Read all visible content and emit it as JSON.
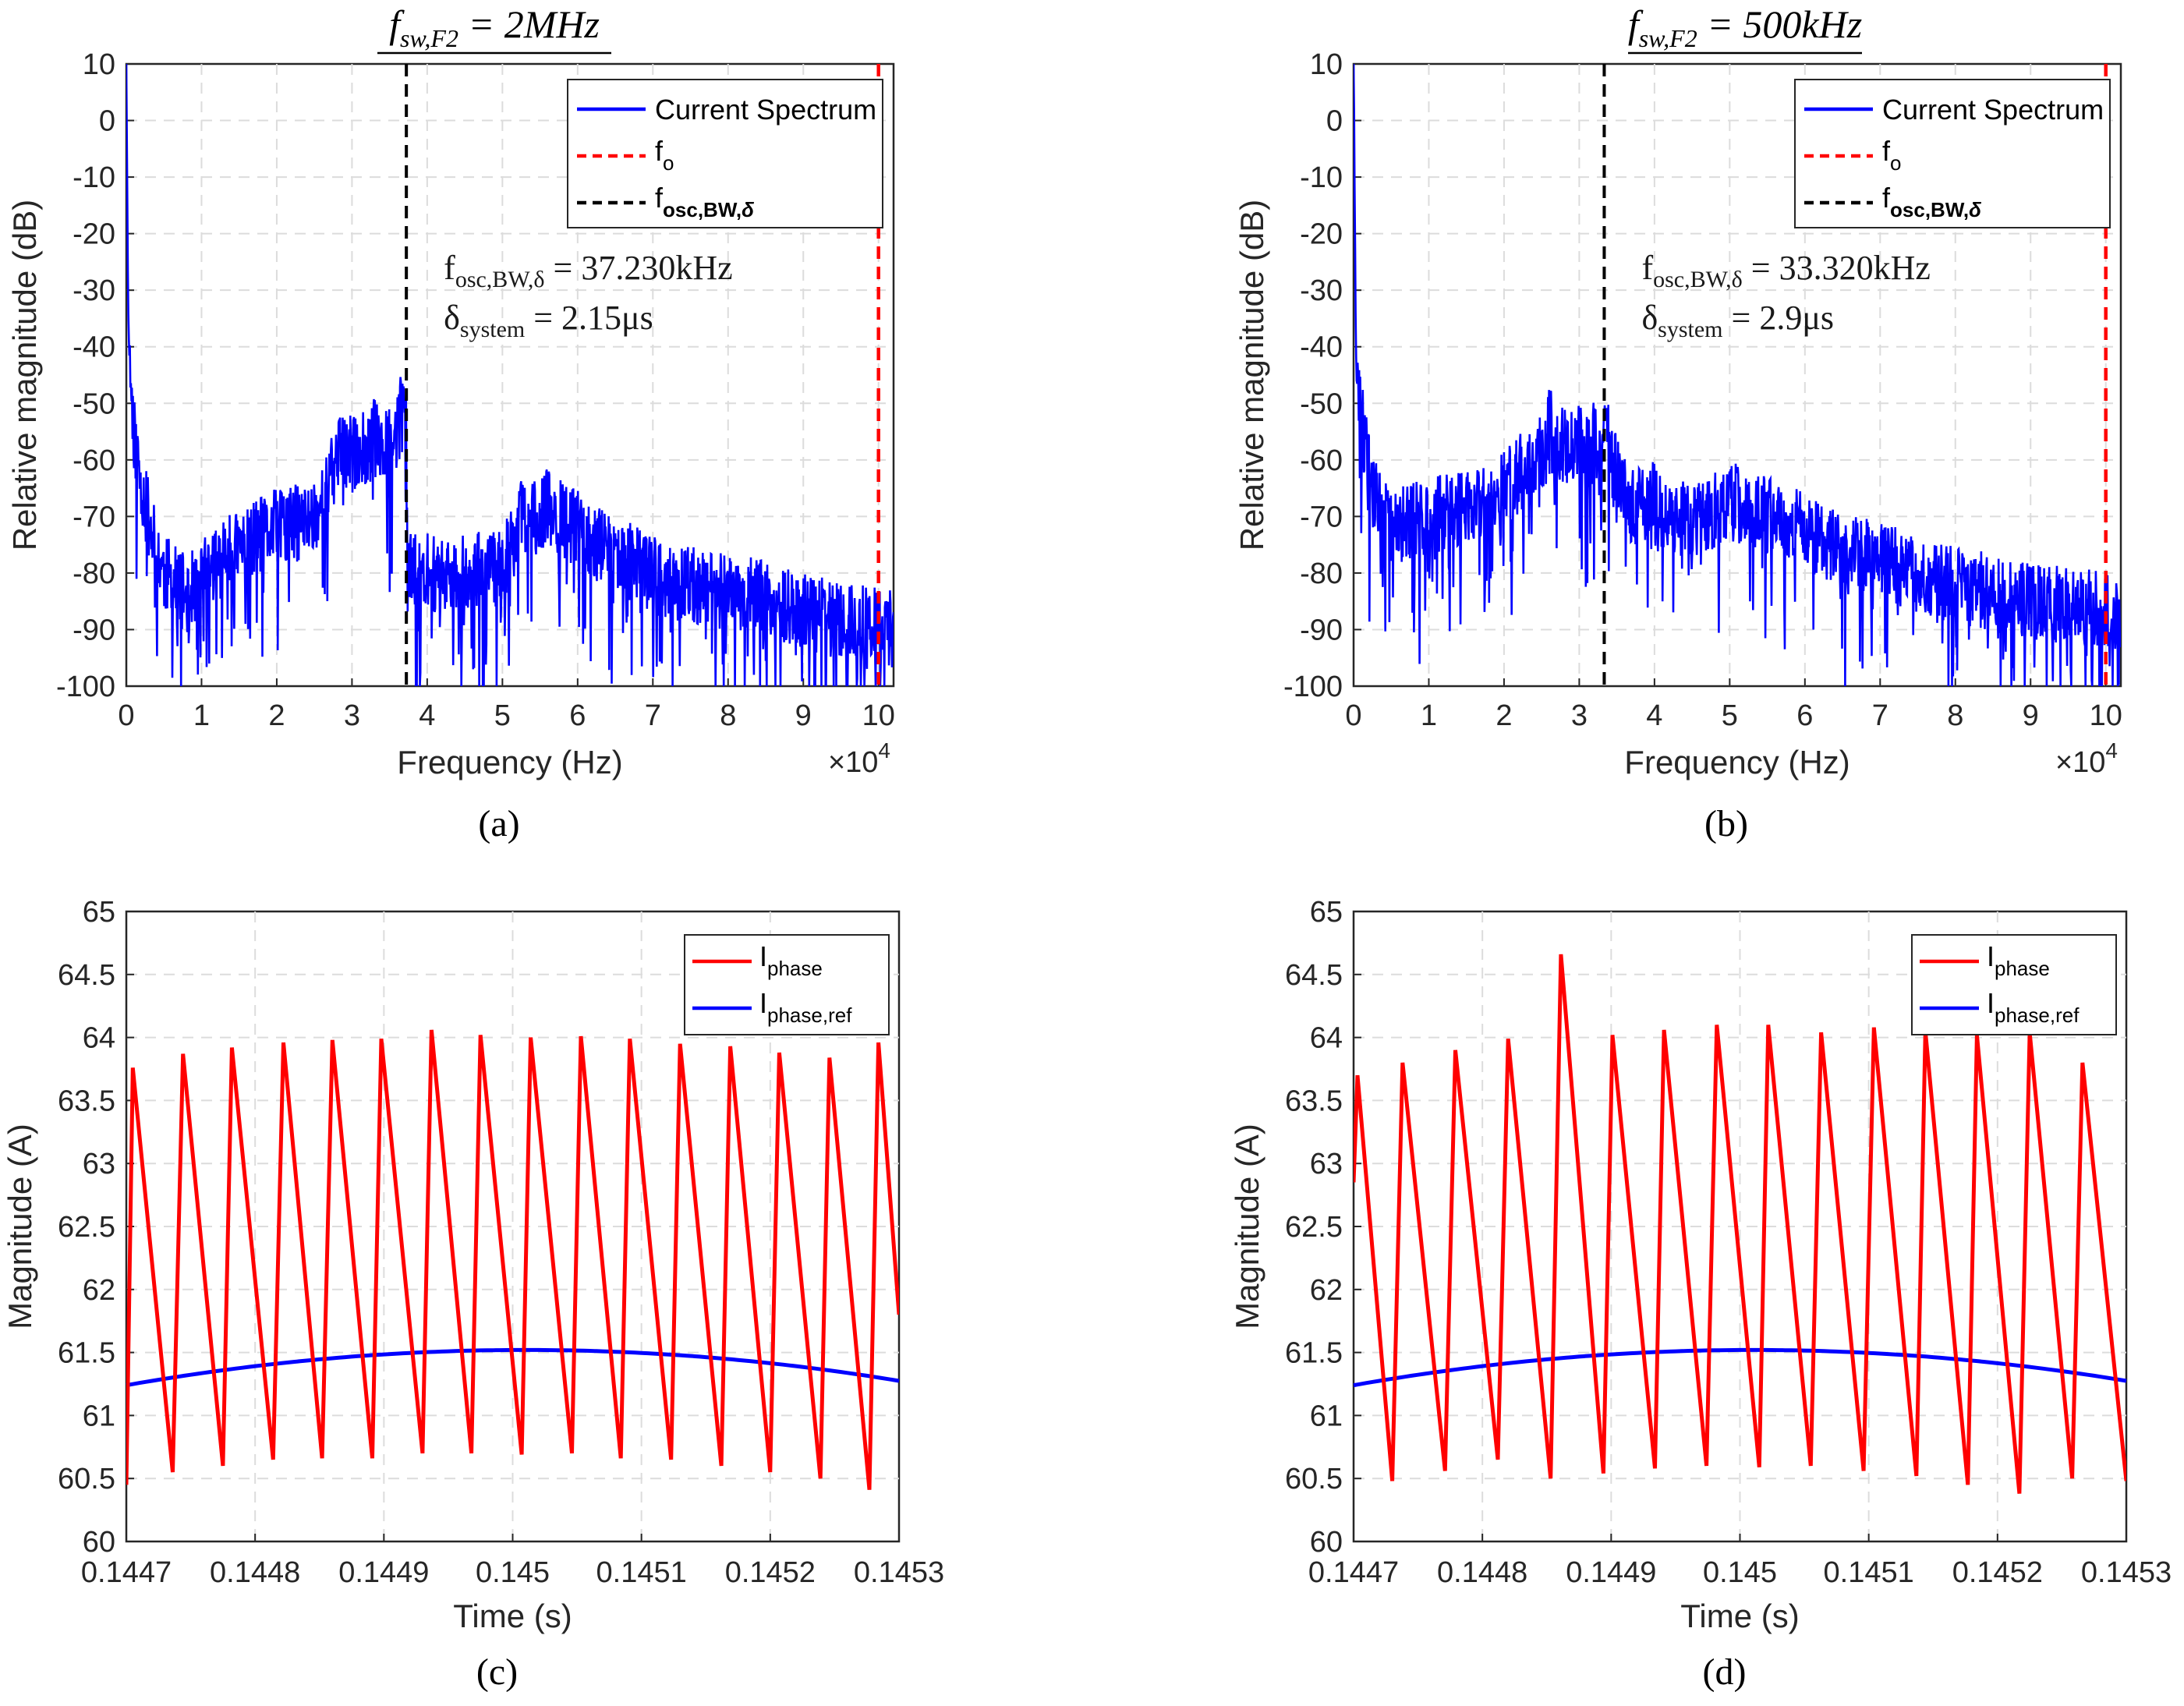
{
  "chart_data": [
    {
      "id": "a",
      "type": "line",
      "title": "f_{sw,F2} = 2MHz",
      "title_parts": {
        "base": "f",
        "sub": "sw,F2",
        "value": " = 2MHz"
      },
      "caption": "(a)",
      "xlabel": "Frequency (Hz)",
      "ylabel": "Relative magnitude  (dB)",
      "xlim": [
        0,
        102000
      ],
      "ylim": [
        -100,
        10
      ],
      "x_ticks": [
        0,
        1,
        2,
        3,
        4,
        5,
        6,
        7,
        8,
        9,
        10
      ],
      "x_tick_scale": 10000,
      "x_exponent_label": "×10",
      "x_exponent": "4",
      "y_ticks": [
        10,
        0,
        -10,
        -20,
        -30,
        -40,
        -50,
        -60,
        -70,
        -80,
        -90,
        -100
      ],
      "legend": [
        "Current Spectrum",
        "f_o",
        "f_osc,BW,δ"
      ],
      "legend_labels": {
        "series1": "Current Spectrum",
        "series2_base": "f",
        "series2_sub": "o",
        "series3_base": "f",
        "series3_sub": "osc,BW,",
        "series3_delta": "δ"
      },
      "annotations": {
        "line1_base": "f",
        "line1_sub": "osc,BW,δ",
        "line1_value": " = 37.230kHz",
        "line2_base": "δ",
        "line2_sub": "system",
        "line2_value": " = 2.15μs"
      },
      "f_osc_bw": 37230,
      "f_o": 100000,
      "seed": 11,
      "spectrum_profile": [
        [
          0,
          10
        ],
        [
          300,
          -40
        ],
        [
          1000,
          -55
        ],
        [
          2500,
          -68
        ],
        [
          5000,
          -80
        ],
        [
          8000,
          -84
        ],
        [
          12000,
          -78
        ],
        [
          20000,
          -72
        ],
        [
          24000,
          -71
        ],
        [
          26000,
          -68
        ],
        [
          28000,
          -60
        ],
        [
          32000,
          -58
        ],
        [
          36000,
          -55
        ],
        [
          37200,
          -52
        ],
        [
          37400,
          -80
        ],
        [
          45000,
          -80
        ],
        [
          50000,
          -79
        ],
        [
          52000,
          -72
        ],
        [
          56000,
          -69
        ],
        [
          62000,
          -74
        ],
        [
          68000,
          -79
        ],
        [
          72000,
          -82
        ],
        [
          80000,
          -83
        ],
        [
          90000,
          -87
        ],
        [
          102000,
          -90
        ]
      ],
      "spectrum_peaks": [
        [
          36500,
          -47
        ],
        [
          28500,
          -52
        ],
        [
          56000,
          -63
        ],
        [
          52500,
          -65
        ],
        [
          33000,
          -51
        ]
      ],
      "colors": {
        "spectrum": "#0000ff",
        "fo": "#ff0000",
        "fosc": "#000000"
      }
    },
    {
      "id": "b",
      "type": "line",
      "title": "f_{sw,F2} = 500kHz",
      "title_parts": {
        "base": "f",
        "sub": "sw,F2",
        "value": " = 500kHz"
      },
      "caption": "(b)",
      "xlabel": "Frequency (Hz)",
      "ylabel": "Relative magnitude  (dB)",
      "xlim": [
        0,
        102000
      ],
      "ylim": [
        -100,
        10
      ],
      "x_ticks": [
        0,
        1,
        2,
        3,
        4,
        5,
        6,
        7,
        8,
        9,
        10
      ],
      "x_tick_scale": 10000,
      "x_exponent_label": "×10",
      "x_exponent": "4",
      "y_ticks": [
        10,
        0,
        -10,
        -20,
        -30,
        -40,
        -50,
        -60,
        -70,
        -80,
        -90,
        -100
      ],
      "legend": [
        "Current Spectrum",
        "f_o",
        "f_osc,BW,δ"
      ],
      "legend_labels": {
        "series1": "Current Spectrum",
        "series2_base": "f",
        "series2_sub": "o",
        "series3_base": "f",
        "series3_sub": "osc,BW,",
        "series3_delta": "δ"
      },
      "annotations": {
        "line1_base": "f",
        "line1_sub": "osc,BW,δ",
        "line1_value": " = 33.320kHz",
        "line2_base": "δ",
        "line2_sub": "system",
        "line2_value": " = 2.9μs"
      },
      "f_osc_bw": 33320,
      "f_o": 100000,
      "seed": 29,
      "spectrum_profile": [
        [
          0,
          10
        ],
        [
          300,
          -40
        ],
        [
          1000,
          -52
        ],
        [
          2500,
          -66
        ],
        [
          5000,
          -72
        ],
        [
          10000,
          -70
        ],
        [
          16000,
          -68
        ],
        [
          20000,
          -65
        ],
        [
          24000,
          -60
        ],
        [
          27000,
          -57
        ],
        [
          30000,
          -58
        ],
        [
          34000,
          -60
        ],
        [
          37000,
          -68
        ],
        [
          45000,
          -71
        ],
        [
          50000,
          -68
        ],
        [
          56000,
          -70
        ],
        [
          62000,
          -74
        ],
        [
          70000,
          -78
        ],
        [
          80000,
          -82
        ],
        [
          90000,
          -85
        ],
        [
          102000,
          -87
        ]
      ],
      "spectrum_peaks": [
        [
          26000,
          -48
        ],
        [
          32000,
          -50
        ],
        [
          30000,
          -52
        ],
        [
          33600,
          -51
        ],
        [
          51000,
          -62
        ],
        [
          40000,
          -62
        ]
      ],
      "colors": {
        "spectrum": "#0000ff",
        "fo": "#ff0000",
        "fosc": "#000000"
      }
    },
    {
      "id": "c",
      "type": "line",
      "caption": "(c)",
      "xlabel": "Time (s)",
      "ylabel": "Magnitude (A)",
      "xlim": [
        0.1447,
        0.1453
      ],
      "ylim": [
        60,
        65
      ],
      "x_ticks": [
        "0.1447",
        "0.1448",
        "0.1449",
        "0.145",
        "0.1451",
        "0.1452",
        "0.1453"
      ],
      "y_ticks": [
        "65",
        "64.5",
        "64",
        "63.5",
        "63",
        "62.5",
        "62",
        "61.5",
        "61",
        "60.5",
        "60"
      ],
      "legend": [
        "I_phase",
        "I_phase,ref"
      ],
      "legend_labels": {
        "series1_base": "I",
        "series1_sub": "phase",
        "series2_base": "I",
        "series2_sub": "phase,ref"
      },
      "ref_curve": {
        "center": 0.14501,
        "peak": 61.52,
        "edge": 61.24
      },
      "series_phase": {
        "start": [
          0.1447,
          60.45
        ],
        "cycles": [
          [
            0.144705,
            63.76
          ],
          [
            0.144736,
            60.55
          ],
          [
            0.144744,
            63.87
          ],
          [
            0.144775,
            60.6
          ],
          [
            0.144782,
            63.92
          ],
          [
            0.144814,
            60.65
          ],
          [
            0.144822,
            63.96
          ],
          [
            0.144852,
            60.66
          ],
          [
            0.14486,
            63.98
          ],
          [
            0.144891,
            60.66
          ],
          [
            0.144898,
            63.99
          ],
          [
            0.14493,
            60.7
          ],
          [
            0.144937,
            64.06
          ],
          [
            0.144968,
            60.7
          ],
          [
            0.144975,
            64.02
          ],
          [
            0.145007,
            60.69
          ],
          [
            0.145014,
            64.0
          ],
          [
            0.145046,
            60.7
          ],
          [
            0.145053,
            64.01
          ],
          [
            0.145084,
            60.66
          ],
          [
            0.145091,
            63.99
          ],
          [
            0.145123,
            60.65
          ],
          [
            0.14513,
            63.95
          ],
          [
            0.145162,
            60.6
          ],
          [
            0.145169,
            63.93
          ],
          [
            0.1452,
            60.55
          ],
          [
            0.145207,
            63.88
          ],
          [
            0.145239,
            60.5
          ],
          [
            0.145246,
            63.84
          ],
          [
            0.145277,
            60.41
          ],
          [
            0.145284,
            63.96
          ]
        ],
        "end": [
          0.1453,
          61.8
        ]
      },
      "colors": {
        "phase": "#ff0000",
        "ref": "#0000ff"
      }
    },
    {
      "id": "d",
      "type": "line",
      "caption": "(d)",
      "xlabel": "Time (s)",
      "ylabel": "Magnitude (A)",
      "xlim": [
        0.1447,
        0.1453
      ],
      "ylim": [
        60,
        65
      ],
      "x_ticks": [
        "0.1447",
        "0.1448",
        "0.1449",
        "0.145",
        "0.1451",
        "0.1452",
        "0.1453"
      ],
      "y_ticks": [
        "65",
        "64.5",
        "64",
        "63.5",
        "63",
        "62.5",
        "62",
        "61.5",
        "61",
        "60.5",
        "60"
      ],
      "legend": [
        "I_phase",
        "I_phase,ref"
      ],
      "legend_labels": {
        "series1_base": "I",
        "series1_sub": "phase",
        "series2_base": "I",
        "series2_sub": "phase,ref"
      },
      "ref_curve": {
        "center": 0.14501,
        "peak": 61.52,
        "edge": 61.24
      },
      "series_phase": {
        "start": [
          0.1447,
          62.85
        ],
        "cycles": [
          [
            0.144703,
            63.7
          ],
          [
            0.14473,
            60.48
          ],
          [
            0.144738,
            63.8
          ],
          [
            0.144771,
            60.56
          ],
          [
            0.144779,
            63.9
          ],
          [
            0.144812,
            60.65
          ],
          [
            0.14482,
            63.99
          ],
          [
            0.144853,
            60.5
          ],
          [
            0.144861,
            64.66
          ],
          [
            0.144894,
            60.54
          ],
          [
            0.144901,
            64.02
          ],
          [
            0.144934,
            60.58
          ],
          [
            0.144941,
            64.06
          ],
          [
            0.144974,
            60.6
          ],
          [
            0.144982,
            64.1
          ],
          [
            0.145015,
            60.59
          ],
          [
            0.145022,
            64.1
          ],
          [
            0.145055,
            60.6
          ],
          [
            0.145063,
            64.04
          ],
          [
            0.145096,
            60.56
          ],
          [
            0.145104,
            64.08
          ],
          [
            0.145137,
            60.52
          ],
          [
            0.145144,
            64.05
          ],
          [
            0.145177,
            60.45
          ],
          [
            0.145184,
            64.02
          ],
          [
            0.145217,
            60.38
          ],
          [
            0.145225,
            64.04
          ],
          [
            0.145258,
            60.5
          ],
          [
            0.145266,
            63.8
          ]
        ],
        "end": [
          0.1453,
          60.48
        ]
      },
      "colors": {
        "phase": "#ff0000",
        "ref": "#0000ff"
      }
    }
  ]
}
